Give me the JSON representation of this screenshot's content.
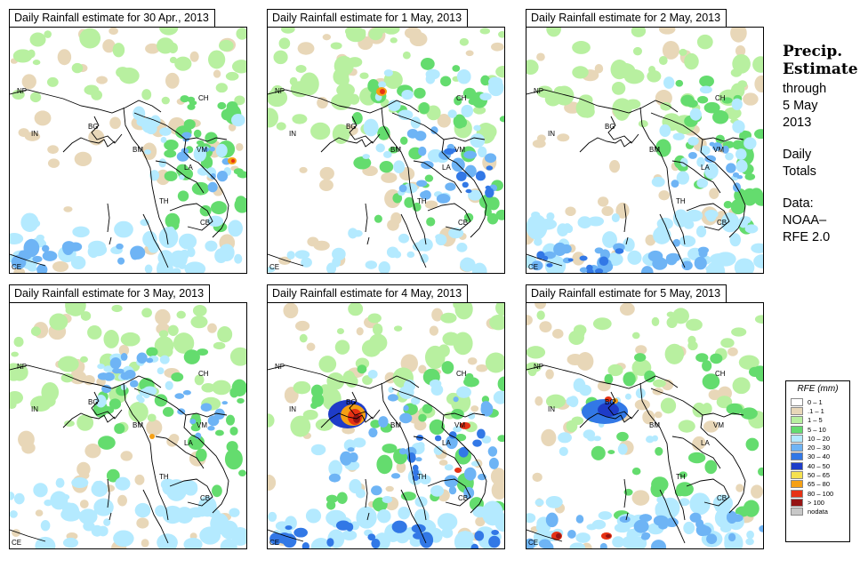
{
  "panels": [
    {
      "title": "Daily Rainfall estimate for  30 Apr., 2013",
      "date": "30 Apr., 2013"
    },
    {
      "title": "Daily Rainfall estimate for  1 May, 2013",
      "date": "1 May, 2013"
    },
    {
      "title": "Daily Rainfall estimate for  2 May, 2013",
      "date": "2 May, 2013"
    },
    {
      "title": "Daily Rainfall estimate for  3 May, 2013",
      "date": "3 May, 2013"
    },
    {
      "title": "Daily Rainfall estimate for  4 May, 2013",
      "date": "4 May, 2013"
    },
    {
      "title": "Daily Rainfall estimate for  5 May, 2013",
      "date": "5 May, 2013"
    }
  ],
  "country_labels": [
    "NP",
    "CH",
    "IN",
    "BG",
    "BM",
    "VM",
    "LA",
    "TH",
    "CB",
    "CE"
  ],
  "sidebar": {
    "heading1": "Precip.",
    "heading2": "Estimate",
    "line1": "through",
    "line2": "5 May",
    "line3": "2013",
    "line4": "Daily",
    "line5": "Totals",
    "line6": "Data:",
    "line7": "NOAA–",
    "line8": "RFE 2.0"
  },
  "legend": {
    "title": "RFE (mm)",
    "items": [
      {
        "label": "0 – 1",
        "color": "#ffffff"
      },
      {
        "label": ".1 – 1",
        "color": "#e8d7b8"
      },
      {
        "label": "1 – 5",
        "color": "#b8f0a0"
      },
      {
        "label": "5 – 10",
        "color": "#64dc6e"
      },
      {
        "label": "10 – 20",
        "color": "#b4eaff"
      },
      {
        "label": "20 – 30",
        "color": "#6eb4f5"
      },
      {
        "label": "30 – 40",
        "color": "#3278e6"
      },
      {
        "label": "40 – 50",
        "color": "#1e3cc8"
      },
      {
        "label": "50 – 65",
        "color": "#f5e150"
      },
      {
        "label": "65 – 80",
        "color": "#f5a014"
      },
      {
        "label": "80 – 100",
        "color": "#e63214"
      },
      {
        "label": "> 100",
        "color": "#961414"
      },
      {
        "label": "nodata",
        "color": "#c8c8c8"
      }
    ]
  }
}
